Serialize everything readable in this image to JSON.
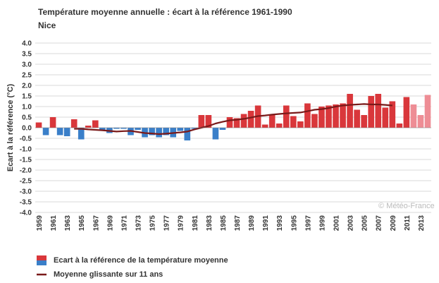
{
  "header": {
    "title": "Température moyenne annuelle : écart à la référence 1961-1990",
    "subtitle": "Nice"
  },
  "credit": "Météo-France",
  "legend": {
    "bars_label": "Ecart à la référence de la température moyenne",
    "line_label": "Moyenne glissante sur 11 ans"
  },
  "colors": {
    "positive": "#d9373b",
    "negative": "#3a7fc9",
    "positive_light": "#ee8d95",
    "line": "#7a1a1a",
    "grid": "#d9d9d9"
  },
  "chart_data": {
    "type": "bar",
    "title": "Température moyenne annuelle : écart à la référence 1961-1990",
    "subtitle": "Nice",
    "ylabel": "Ecart à la référence (°C)",
    "ylim": [
      -4.0,
      4.0
    ],
    "yticks": [
      "4.0",
      "3.5",
      "3.0",
      "2.5",
      "2.0",
      "1.5",
      "1.0",
      "0.5",
      "0.0",
      "-0.5",
      "-1.0",
      "-1.5",
      "-2.0",
      "-2.5",
      "-3.0",
      "-3.5",
      "-4.0"
    ],
    "xtick_labels": [
      "1959",
      "1961",
      "1963",
      "1965",
      "1967",
      "1969",
      "1971",
      "1973",
      "1975",
      "1977",
      "1979",
      "1981",
      "1983",
      "1985",
      "1987",
      "1989",
      "1991",
      "1993",
      "1995",
      "1997",
      "1999",
      "2001",
      "2003",
      "2005",
      "2007",
      "2009",
      "2011",
      "2013"
    ],
    "grid": true,
    "legend_position": "bottom-left",
    "categories": [
      1959,
      1960,
      1961,
      1962,
      1963,
      1964,
      1965,
      1966,
      1967,
      1968,
      1969,
      1970,
      1971,
      1972,
      1973,
      1974,
      1975,
      1976,
      1977,
      1978,
      1979,
      1980,
      1981,
      1982,
      1983,
      1984,
      1985,
      1986,
      1987,
      1988,
      1989,
      1990,
      1991,
      1992,
      1993,
      1994,
      1995,
      1996,
      1997,
      1998,
      1999,
      2000,
      2001,
      2002,
      2003,
      2004,
      2005,
      2006,
      2007,
      2008,
      2009,
      2010,
      2011,
      2012,
      2013,
      2014
    ],
    "series": [
      {
        "name": "Ecart à la référence de la température moyenne",
        "values": [
          0.25,
          -0.35,
          0.5,
          -0.35,
          -0.4,
          0.4,
          -0.55,
          0.1,
          0.35,
          -0.1,
          -0.25,
          -0.05,
          -0.05,
          -0.35,
          -0.1,
          -0.45,
          -0.35,
          -0.45,
          -0.35,
          -0.45,
          -0.15,
          -0.6,
          -0.05,
          0.6,
          0.6,
          -0.55,
          -0.1,
          0.5,
          0.45,
          0.65,
          0.8,
          1.05,
          0.15,
          0.6,
          0.2,
          1.05,
          0.55,
          0.3,
          1.15,
          0.65,
          1.0,
          1.05,
          1.1,
          1.15,
          1.6,
          0.85,
          0.6,
          1.5,
          1.6,
          0.95,
          1.25,
          0.2,
          1.45,
          1.1,
          0.6,
          1.55
        ],
        "provisional_from": 2012
      },
      {
        "name": "Moyenne glissante sur 11 ans",
        "x": [
          1964,
          1965,
          1966,
          1967,
          1968,
          1969,
          1970,
          1971,
          1972,
          1973,
          1974,
          1975,
          1976,
          1977,
          1978,
          1979,
          1980,
          1981,
          1982,
          1983,
          1984,
          1985,
          1986,
          1987,
          1988,
          1989,
          1990,
          1991,
          1992,
          1993,
          1994,
          1995,
          1996,
          1997,
          1998,
          1999,
          2000,
          2001,
          2002,
          2003,
          2004,
          2005,
          2006,
          2007,
          2008,
          2009
        ],
        "values": [
          -0.05,
          -0.05,
          -0.08,
          -0.1,
          -0.12,
          -0.15,
          -0.18,
          -0.16,
          -0.15,
          -0.2,
          -0.25,
          -0.27,
          -0.3,
          -0.28,
          -0.25,
          -0.22,
          -0.18,
          -0.08,
          0.0,
          0.08,
          0.2,
          0.28,
          0.35,
          0.38,
          0.42,
          0.48,
          0.55,
          0.58,
          0.62,
          0.65,
          0.68,
          0.7,
          0.72,
          0.78,
          0.85,
          0.88,
          0.93,
          1.0,
          1.05,
          1.08,
          1.1,
          1.12,
          1.1,
          1.1,
          1.08,
          1.05
        ]
      }
    ]
  }
}
